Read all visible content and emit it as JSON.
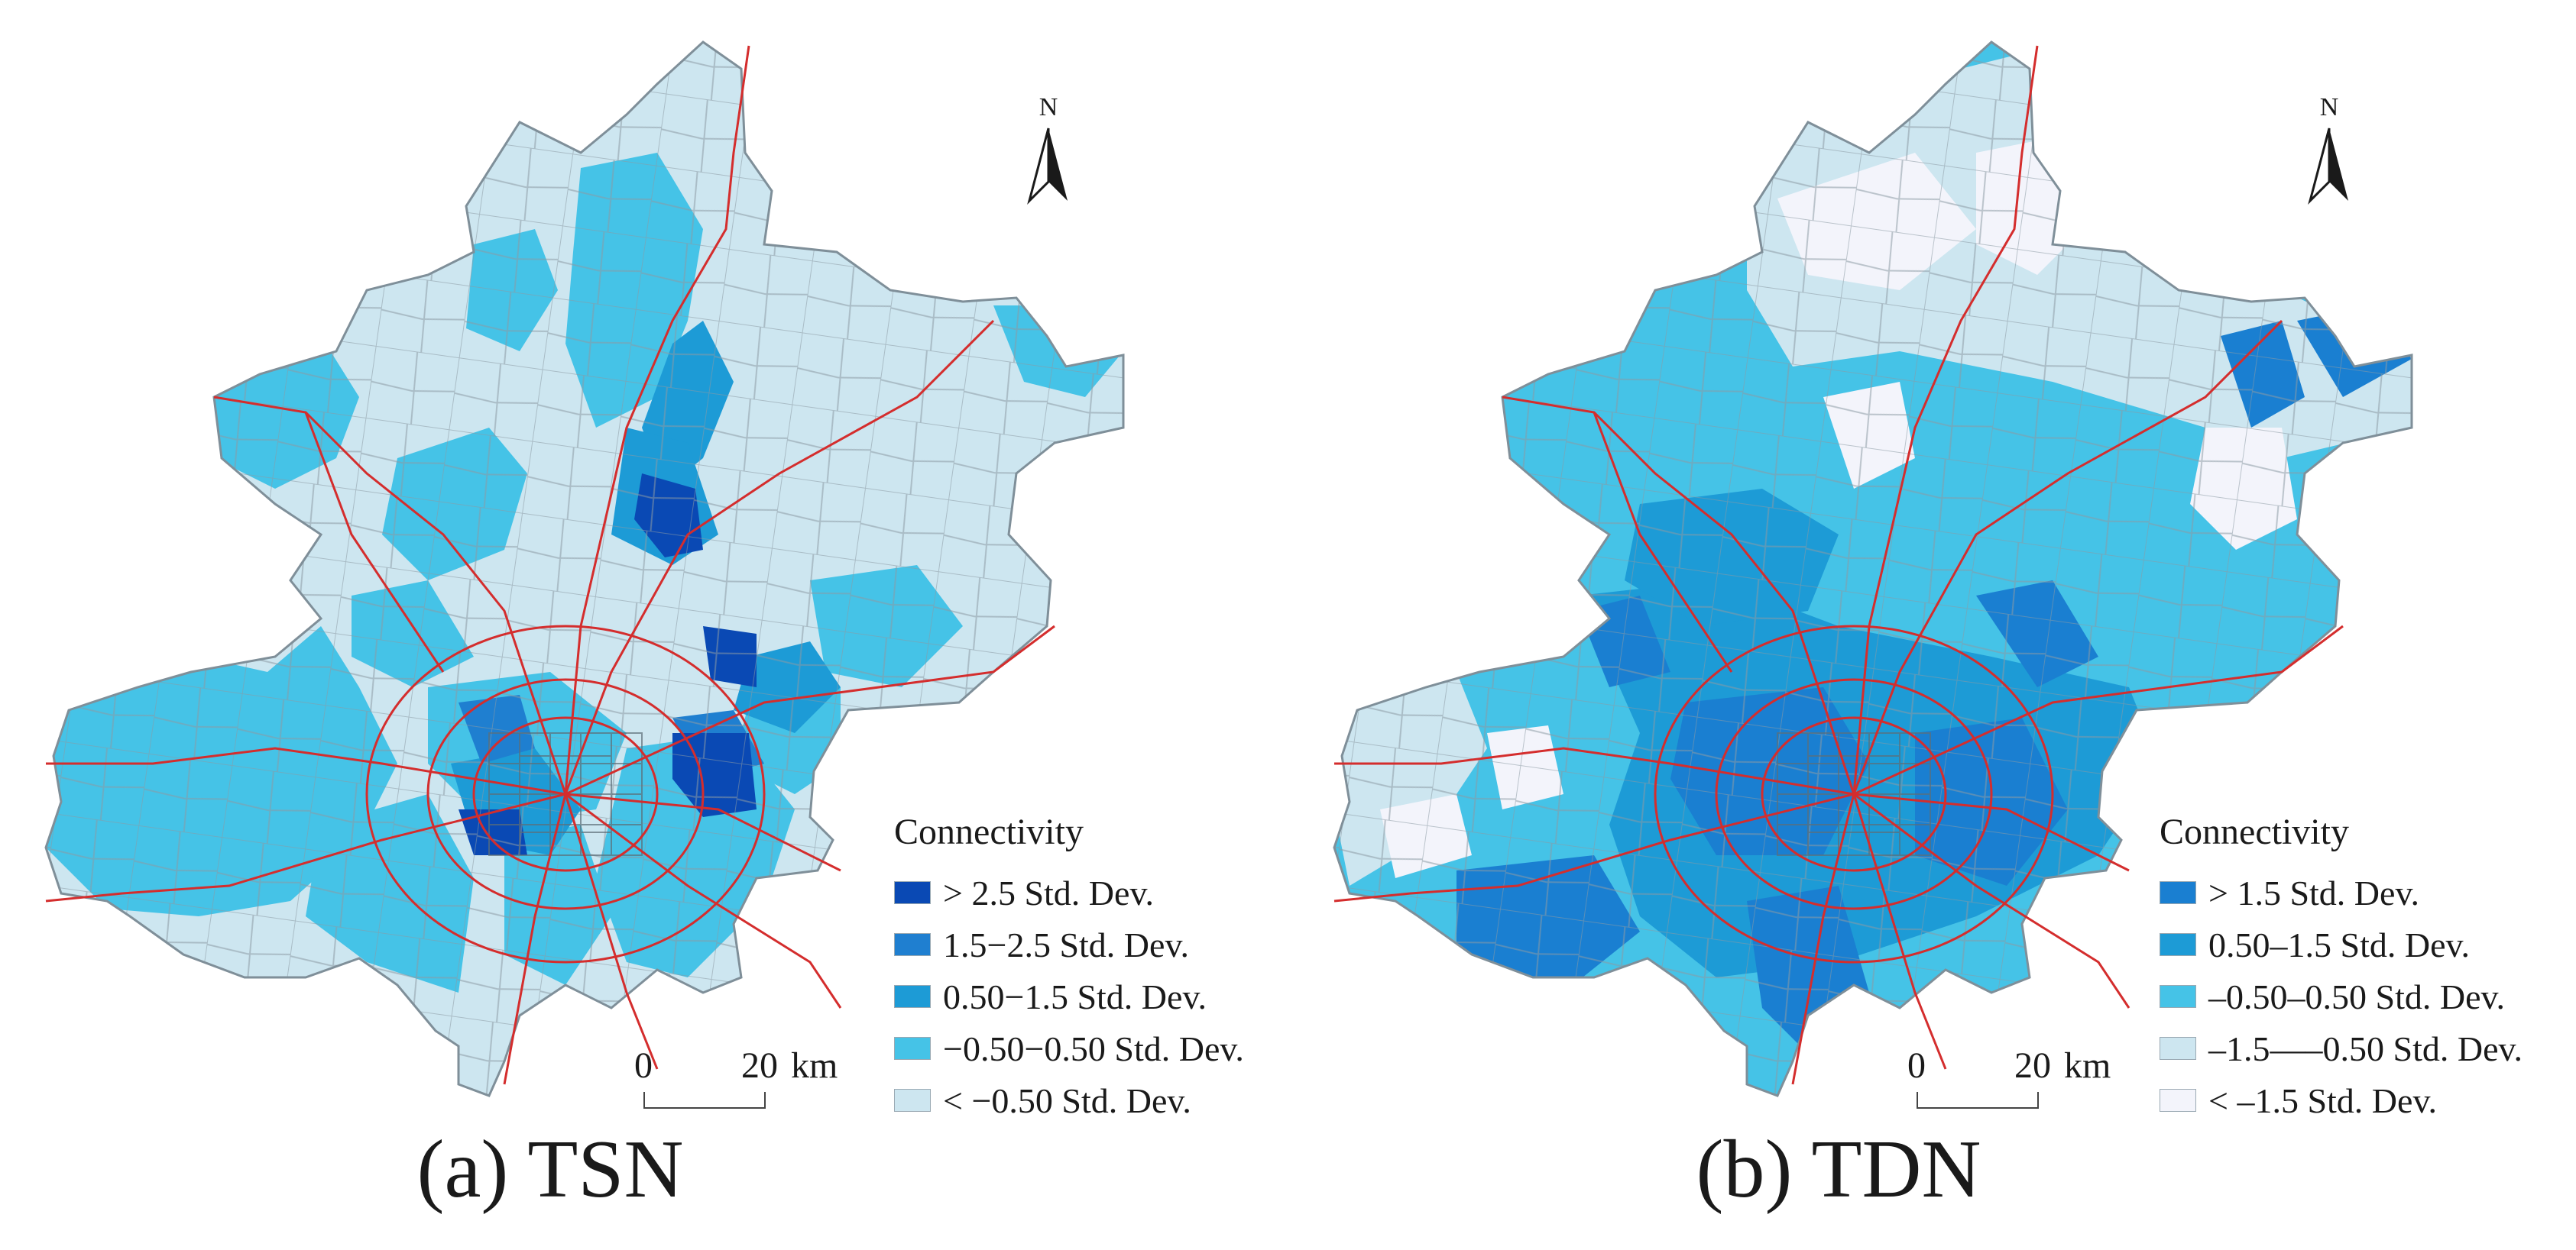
{
  "figure": {
    "panels": [
      {
        "id": "a",
        "title": "(a) TSN",
        "north_label": "N",
        "legend": {
          "title": "Connectivity",
          "items": [
            {
              "label": "> 2.5 Std. Dev.",
              "color": "#0a49b4"
            },
            {
              "label": "1.5−2.5 Std. Dev.",
              "color": "#1f7fd0"
            },
            {
              "label": "0.50−1.5 Std. Dev.",
              "color": "#1d9bd6"
            },
            {
              "label": "−0.50−0.50 Std. Dev.",
              "color": "#45c3e7"
            },
            {
              "label": "< −0.50 Std. Dev.",
              "color": "#cde6f0"
            }
          ]
        },
        "scale_bar": {
          "start": "0",
          "end": "20",
          "unit": "km"
        }
      },
      {
        "id": "b",
        "title": "(b) TDN",
        "north_label": "N",
        "legend": {
          "title": "Connectivity",
          "items": [
            {
              "label": "> 1.5 Std. Dev.",
              "color": "#1a7fd1"
            },
            {
              "label": "0.50–1.5 Std. Dev.",
              "color": "#1d9bd6"
            },
            {
              "label": "–0.50–0.50 Std. Dev.",
              "color": "#45c3e7"
            },
            {
              "label": "–1.5—–0.50 Std. Dev.",
              "color": "#cde6f0"
            },
            {
              "label": "< –1.5 Std. Dev.",
              "color": "#f3f4fb"
            }
          ]
        },
        "scale_bar": {
          "start": "0",
          "end": "20",
          "unit": "km"
        }
      }
    ],
    "colors": {
      "road": "#d42d2d",
      "boundary": "#7f8f99"
    }
  }
}
